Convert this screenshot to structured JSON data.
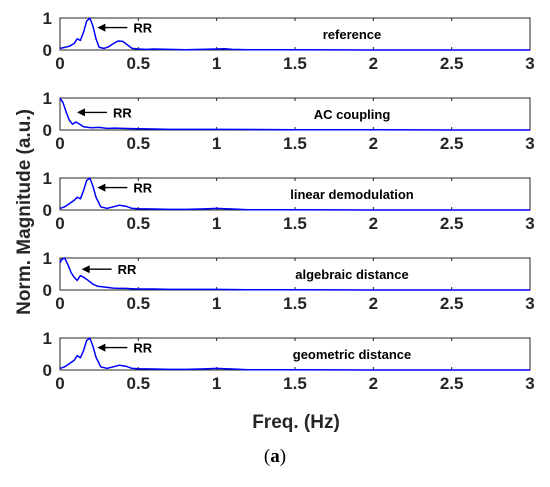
{
  "figure": {
    "ylabel": "Norm. Magnitude (a.u.)",
    "xlabel": "Freq. (Hz)",
    "caption": {
      "open": "(",
      "letter": "a",
      "close": ")"
    },
    "line_color": "#0000ff"
  },
  "chart_data": [
    {
      "type": "line",
      "title": "reference",
      "annotation": "RR",
      "annotation_x": 0.2,
      "annotation_y": 0.7,
      "xlim": [
        0,
        3
      ],
      "ylim": [
        0,
        1
      ],
      "xticks": [
        "0",
        "0.5",
        "1",
        "1.5",
        "2",
        "2.5",
        "3"
      ],
      "yticks": [
        "0",
        "1"
      ],
      "x": [
        0,
        0.03,
        0.06,
        0.09,
        0.11,
        0.13,
        0.15,
        0.17,
        0.19,
        0.21,
        0.23,
        0.25,
        0.28,
        0.31,
        0.34,
        0.37,
        0.4,
        0.43,
        0.46,
        0.5,
        0.55,
        0.6,
        0.7,
        0.8,
        0.9,
        1.0,
        1.05,
        1.1,
        1.2,
        1.5,
        2.0,
        2.5,
        3.0
      ],
      "y": [
        0.05,
        0.08,
        0.12,
        0.2,
        0.35,
        0.3,
        0.55,
        0.9,
        1.0,
        0.75,
        0.35,
        0.08,
        0.05,
        0.1,
        0.2,
        0.28,
        0.27,
        0.16,
        0.05,
        0.03,
        0.02,
        0.03,
        0.02,
        0.01,
        0.02,
        0.03,
        0.04,
        0.02,
        0.01,
        0.01,
        0.0,
        0.0,
        0.0
      ]
    },
    {
      "type": "line",
      "title": "AC coupling",
      "annotation": "RR",
      "annotation_x": 0.07,
      "annotation_y": 0.55,
      "xlim": [
        0,
        3
      ],
      "ylim": [
        0,
        1
      ],
      "xticks": [
        "0",
        "0.5",
        "1",
        "1.5",
        "2",
        "2.5",
        "3"
      ],
      "yticks": [
        "0",
        "1"
      ],
      "x": [
        0,
        0.02,
        0.04,
        0.06,
        0.08,
        0.1,
        0.12,
        0.15,
        0.2,
        0.25,
        0.3,
        0.35,
        0.4,
        0.5,
        0.6,
        0.7,
        1.0,
        1.5,
        2.0,
        2.5,
        3.0
      ],
      "y": [
        1.0,
        0.85,
        0.55,
        0.3,
        0.18,
        0.25,
        0.2,
        0.1,
        0.07,
        0.08,
        0.05,
        0.06,
        0.05,
        0.04,
        0.03,
        0.02,
        0.02,
        0.01,
        0.01,
        0.0,
        0.0
      ]
    },
    {
      "type": "line",
      "title": "linear demodulation",
      "annotation": "RR",
      "annotation_x": 0.2,
      "annotation_y": 0.7,
      "xlim": [
        0,
        3
      ],
      "ylim": [
        0,
        1
      ],
      "xticks": [
        "0",
        "0.5",
        "1",
        "1.5",
        "2",
        "2.5",
        "3"
      ],
      "yticks": [
        "0",
        "1"
      ],
      "x": [
        0,
        0.03,
        0.06,
        0.09,
        0.11,
        0.13,
        0.15,
        0.17,
        0.19,
        0.21,
        0.23,
        0.26,
        0.3,
        0.34,
        0.38,
        0.42,
        0.46,
        0.5,
        0.6,
        0.7,
        0.8,
        0.9,
        1.0,
        1.1,
        1.2,
        1.5,
        2.0,
        2.5,
        3.0
      ],
      "y": [
        0.05,
        0.1,
        0.2,
        0.3,
        0.4,
        0.35,
        0.6,
        0.92,
        1.0,
        0.75,
        0.4,
        0.1,
        0.05,
        0.1,
        0.15,
        0.12,
        0.05,
        0.04,
        0.03,
        0.02,
        0.02,
        0.03,
        0.05,
        0.03,
        0.01,
        0.01,
        0.0,
        0.0,
        0.0
      ]
    },
    {
      "type": "line",
      "title": "algebraic distance",
      "annotation": "RR",
      "annotation_x": 0.1,
      "annotation_y": 0.65,
      "xlim": [
        0,
        3
      ],
      "ylim": [
        0,
        1
      ],
      "xticks": [
        "0",
        "0.5",
        "1",
        "1.5",
        "2",
        "2.5",
        "3"
      ],
      "yticks": [
        "0",
        "1"
      ],
      "x": [
        0,
        0.01,
        0.03,
        0.05,
        0.07,
        0.09,
        0.11,
        0.13,
        0.15,
        0.18,
        0.21,
        0.24,
        0.27,
        0.3,
        0.34,
        0.38,
        0.42,
        0.46,
        0.5,
        0.6,
        0.7,
        0.8,
        1.0,
        1.2,
        1.5,
        2.0,
        2.5,
        3.0
      ],
      "y": [
        0.85,
        0.95,
        1.0,
        0.8,
        0.55,
        0.4,
        0.3,
        0.45,
        0.4,
        0.3,
        0.18,
        0.12,
        0.1,
        0.08,
        0.06,
        0.05,
        0.05,
        0.04,
        0.03,
        0.03,
        0.02,
        0.02,
        0.02,
        0.01,
        0.01,
        0.0,
        0.0,
        0.0
      ]
    },
    {
      "type": "line",
      "title": "geometric distance",
      "annotation": "RR",
      "annotation_x": 0.2,
      "annotation_y": 0.7,
      "xlim": [
        0,
        3
      ],
      "ylim": [
        0,
        1
      ],
      "xticks": [
        "0",
        "0.5",
        "1",
        "1.5",
        "2",
        "2.5",
        "3"
      ],
      "yticks": [
        "0",
        "1"
      ],
      "x": [
        0,
        0.03,
        0.06,
        0.09,
        0.11,
        0.13,
        0.15,
        0.17,
        0.19,
        0.21,
        0.23,
        0.26,
        0.3,
        0.34,
        0.38,
        0.42,
        0.46,
        0.5,
        0.6,
        0.7,
        0.8,
        0.9,
        1.0,
        1.1,
        1.2,
        1.5,
        2.0,
        2.5,
        3.0
      ],
      "y": [
        0.05,
        0.1,
        0.2,
        0.3,
        0.45,
        0.38,
        0.6,
        0.92,
        1.0,
        0.75,
        0.4,
        0.1,
        0.05,
        0.1,
        0.15,
        0.12,
        0.05,
        0.04,
        0.03,
        0.02,
        0.02,
        0.03,
        0.05,
        0.03,
        0.01,
        0.01,
        0.0,
        0.0,
        0.0
      ]
    }
  ]
}
